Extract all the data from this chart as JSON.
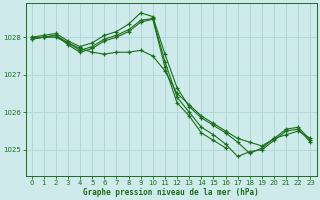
{
  "title": "Graphe pression niveau de la mer (hPa)",
  "background_color": "#ceeaea",
  "grid_color": "#b0d8d8",
  "line_color": "#1a6e1a",
  "xlim": [
    -0.5,
    23.5
  ],
  "ylim": [
    1024.3,
    1028.9
  ],
  "yticks": [
    1025,
    1026,
    1027,
    1028
  ],
  "xticks": [
    0,
    1,
    2,
    3,
    4,
    5,
    6,
    7,
    8,
    9,
    10,
    11,
    12,
    13,
    14,
    15,
    16,
    17,
    18,
    19,
    20,
    21,
    22,
    23
  ],
  "series": [
    {
      "x": [
        0,
        1,
        2,
        3,
        4,
        5,
        6,
        7,
        8,
        9,
        10,
        11,
        12,
        13,
        14,
        15,
        16,
        17,
        18,
        19,
        20,
        21,
        22,
        23
      ],
      "y": [
        1028.0,
        1028.0,
        1028.0,
        1027.85,
        1027.7,
        1027.6,
        1027.55,
        1027.6,
        1027.6,
        1027.65,
        1027.5,
        1027.1,
        1026.5,
        1026.2,
        1025.9,
        1025.7,
        1025.5,
        1025.3,
        1025.2,
        1025.1,
        1025.3,
        1025.4,
        1025.5,
        1025.3
      ]
    },
    {
      "x": [
        0,
        1,
        2,
        3,
        4,
        5,
        6,
        7,
        8,
        9,
        10,
        11,
        12,
        13,
        14,
        15,
        16,
        17,
        18,
        19,
        20,
        21,
        22,
        23
      ],
      "y": [
        1028.0,
        1028.05,
        1028.1,
        1027.9,
        1027.75,
        1027.85,
        1028.05,
        1028.15,
        1028.35,
        1028.65,
        1028.55,
        1027.55,
        1026.65,
        1026.15,
        1025.85,
        1025.65,
        1025.45,
        1025.2,
        1024.9,
        1025.05,
        1025.3,
        1025.55,
        1025.6,
        1025.25
      ]
    },
    {
      "x": [
        0,
        1,
        2,
        3,
        4,
        5,
        6,
        7,
        8,
        9,
        10,
        11,
        12,
        13,
        14,
        15,
        16,
        17,
        18,
        19,
        20,
        21,
        22,
        23
      ],
      "y": [
        1027.95,
        1028.0,
        1028.05,
        1027.85,
        1027.65,
        1027.75,
        1027.95,
        1028.05,
        1028.2,
        1028.45,
        1028.5,
        1027.35,
        1026.4,
        1026.0,
        1025.6,
        1025.4,
        1025.15,
        1024.82,
        1024.95,
        1025.0,
        1025.25,
        1025.5,
        1025.55,
        1025.2
      ]
    },
    {
      "x": [
        0,
        1,
        2,
        3,
        4,
        5,
        6,
        7,
        8,
        9,
        10,
        11,
        12,
        13,
        14,
        15,
        16
      ],
      "y": [
        1027.95,
        1028.0,
        1028.05,
        1027.8,
        1027.6,
        1027.7,
        1027.9,
        1028.0,
        1028.15,
        1028.4,
        1028.48,
        1027.2,
        1026.25,
        1025.9,
        1025.45,
        1025.25,
        1025.05
      ]
    }
  ]
}
